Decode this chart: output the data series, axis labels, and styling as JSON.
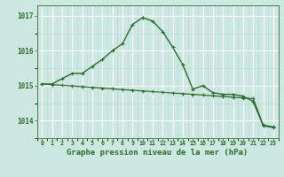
{
  "line1_x": [
    0,
    1,
    2,
    3,
    4,
    5,
    6,
    7,
    8,
    9,
    10,
    11,
    12,
    13,
    14,
    15,
    16,
    17,
    18,
    19,
    20,
    21,
    22,
    23
  ],
  "line1_y": [
    1015.05,
    1015.05,
    1015.2,
    1015.35,
    1015.35,
    1015.55,
    1015.75,
    1016.0,
    1016.2,
    1016.75,
    1016.95,
    1016.85,
    1016.55,
    1016.1,
    1015.6,
    1014.9,
    1015.0,
    1014.8,
    1014.75,
    1014.75,
    1014.7,
    1014.55,
    1013.85,
    1013.8
  ],
  "line2_x": [
    0,
    1,
    2,
    3,
    4,
    5,
    6,
    7,
    8,
    9,
    10,
    11,
    12,
    13,
    14,
    15,
    16,
    17,
    18,
    19,
    20,
    21,
    22,
    23
  ],
  "line2_y": [
    1015.05,
    1015.03,
    1015.01,
    1014.99,
    1014.97,
    1014.95,
    1014.93,
    1014.91,
    1014.89,
    1014.87,
    1014.85,
    1014.83,
    1014.81,
    1014.79,
    1014.77,
    1014.75,
    1014.73,
    1014.71,
    1014.69,
    1014.67,
    1014.65,
    1014.63,
    1013.87,
    1013.82
  ],
  "line_color": "#2d6a2d",
  "bg_color": "#cce8e0",
  "grid_major_color": "#ffffff",
  "grid_minor_color": "#b8ddd5",
  "title": "Graphe pression niveau de la mer (hPa)",
  "ylim": [
    1013.5,
    1017.3
  ],
  "xlim": [
    -0.5,
    23.5
  ],
  "yticks": [
    1014,
    1015,
    1016,
    1017
  ],
  "xticks": [
    0,
    1,
    2,
    3,
    4,
    5,
    6,
    7,
    8,
    9,
    10,
    11,
    12,
    13,
    14,
    15,
    16,
    17,
    18,
    19,
    20,
    21,
    22,
    23
  ],
  "xlabel_fontsize": 6.5,
  "ytick_fontsize": 5.5,
  "xtick_fontsize": 4.8
}
